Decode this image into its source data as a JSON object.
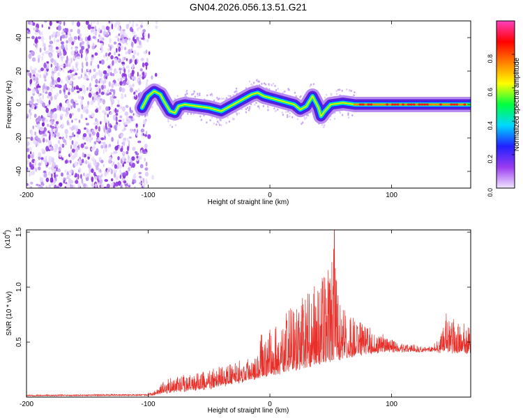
{
  "title": "GN04.2026.056.13.51.G21",
  "chart_data": [
    {
      "type": "heatmap",
      "xlabel": "Height of straight line (km)",
      "ylabel": "Frequency (Hz)",
      "xlim": [
        -200,
        165
      ],
      "ylim": [
        -50,
        50
      ],
      "xticks": [
        -200,
        -100,
        0,
        100
      ],
      "yticks": [
        -40,
        -20,
        0,
        20,
        40
      ],
      "colorbar": {
        "label": "Normalized spectral amplitude",
        "range": [
          0,
          1
        ],
        "ticks": [
          "0.0",
          "0.2",
          "0.4",
          "0.6",
          "0.8"
        ],
        "colors": [
          "#f2e6ff",
          "#9a3cf0",
          "#2020ff",
          "#00d8ff",
          "#00ff40",
          "#ffff00",
          "#ff8000",
          "#ff0000",
          "#ff40c0"
        ]
      },
      "ridge_x": [
        -105,
        -100,
        -95,
        -90,
        -87,
        -82,
        -78,
        -75,
        -70,
        -60,
        -50,
        -40,
        -35,
        -30,
        -20,
        -15,
        -10,
        -5,
        0,
        10,
        20,
        25,
        30,
        35,
        40,
        42,
        45,
        50,
        60,
        70,
        80,
        100,
        120,
        140,
        150,
        160,
        165
      ],
      "ridge_y": [
        -2,
        5,
        8,
        6,
        2,
        -4,
        -5,
        -1,
        0,
        -1,
        -2,
        -4,
        -2,
        0,
        4,
        6,
        7,
        5,
        4,
        2,
        0,
        -3,
        -1,
        5,
        -2,
        -7,
        -4,
        0,
        1,
        0,
        0,
        0,
        0,
        0,
        0,
        0,
        0
      ],
      "noise_x_range": [
        -200,
        -100
      ]
    },
    {
      "type": "line",
      "series": [
        {
          "name": "SNR",
          "color": "#e8302a"
        }
      ],
      "xlabel": "Height of straight line (km)",
      "ylabel": "SNR (10 * v/v)",
      "scale_label": "(x10",
      "scale_exponent": "4",
      "xlim": [
        -200,
        165
      ],
      "ylim": [
        0,
        1.52
      ],
      "xticks": [
        -200,
        -100,
        0,
        100
      ],
      "yticks": [
        "0.5",
        "1.0",
        "1.5"
      ],
      "ytick_values": [
        0.5,
        1.0,
        1.5
      ],
      "envelope_x": [
        -200,
        -110,
        -95,
        -90,
        -80,
        -60,
        -40,
        -20,
        -10,
        0,
        10,
        20,
        30,
        40,
        45,
        50,
        53,
        56,
        60,
        70,
        80,
        100,
        120,
        130,
        140,
        145,
        150,
        165
      ],
      "envelope_y": [
        0.02,
        0.03,
        0.05,
        0.12,
        0.18,
        0.22,
        0.28,
        0.35,
        0.55,
        0.62,
        0.75,
        0.85,
        0.95,
        1.05,
        1.15,
        1.2,
        1.5,
        0.95,
        0.8,
        0.75,
        0.65,
        0.52,
        0.47,
        0.45,
        0.55,
        0.75,
        0.72,
        0.65
      ],
      "baseline_x": [
        -200,
        -100,
        -80,
        -50,
        -20,
        0,
        20,
        40,
        60,
        80,
        100,
        130,
        165
      ],
      "baseline_y": [
        0.015,
        0.02,
        0.05,
        0.08,
        0.15,
        0.2,
        0.25,
        0.3,
        0.35,
        0.4,
        0.42,
        0.42,
        0.4
      ]
    }
  ]
}
